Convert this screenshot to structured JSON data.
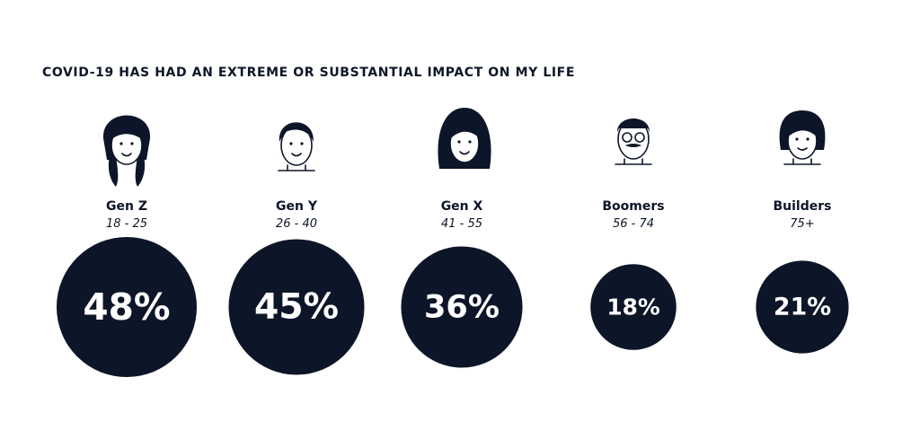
{
  "chart_data": {
    "type": "bubble",
    "title": "COVID-19 HAS HAD AN EXTREME OR SUBSTANTIAL IMPACT ON MY LIFE",
    "categories": [
      "Gen Z",
      "Gen Y",
      "Gen X",
      "Boomers",
      "Builders"
    ],
    "subtitles": [
      "18 - 25",
      "26 - 40",
      "41 - 55",
      "56 - 74",
      "75+"
    ],
    "values": [
      48,
      45,
      36,
      18,
      21
    ],
    "value_labels": [
      "48%",
      "45%",
      "36%",
      "18%",
      "21%"
    ],
    "color": "#0d1628"
  }
}
